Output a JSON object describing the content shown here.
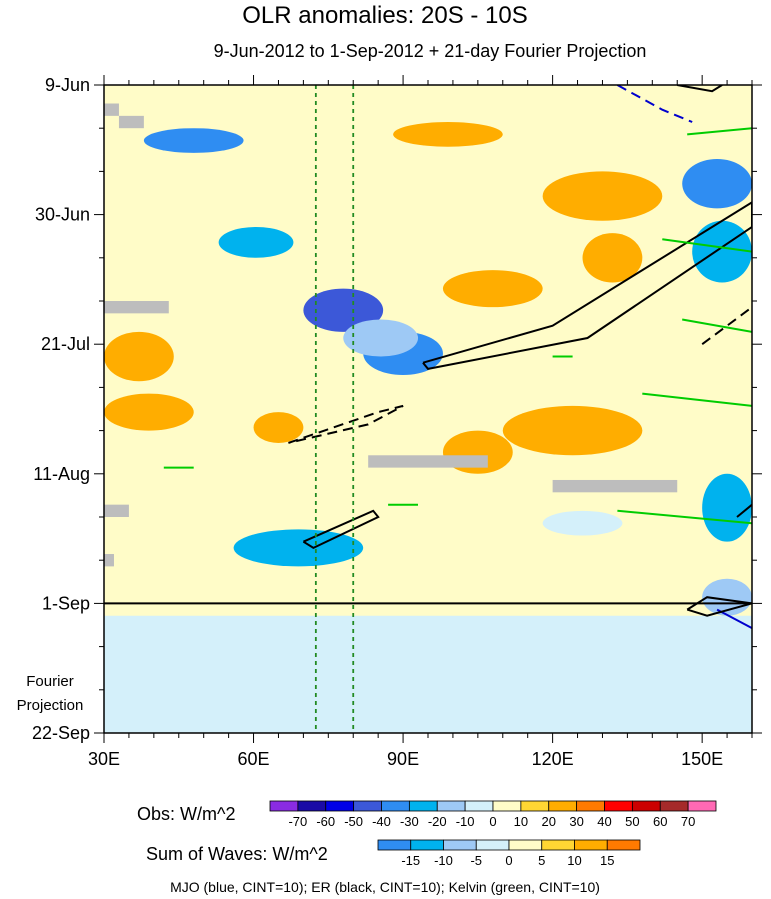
{
  "chart_data": {
    "type": "heatmap",
    "title": "OLR anomalies: 20S - 10S",
    "subtitle": "9-Jun-2012 to 1-Sep-2012 + 21-day Fourier Projection",
    "xlabel": "",
    "ylabel": "",
    "x_range": [
      30,
      160
    ],
    "x_ticks": [
      30,
      60,
      90,
      120,
      150
    ],
    "x_tick_labels": [
      "30E",
      "60E",
      "90E",
      "120E",
      "150E"
    ],
    "y_range_days": [
      0,
      105
    ],
    "y_ticks_days": [
      0,
      21,
      42,
      63,
      84,
      105
    ],
    "y_tick_labels": [
      "9-Jun",
      "30-Jun",
      "21-Jul",
      "11-Aug",
      "1-Sep",
      "22-Sep"
    ],
    "observation_end_day": 84,
    "projection_label_line1": "Fourier",
    "projection_label_line2": "Projection",
    "reference_lines_lon": [
      72.5,
      80
    ],
    "obs_colorbar": {
      "title": "Obs: W/m^2",
      "levels": [
        -70,
        -60,
        -50,
        -40,
        -30,
        -20,
        -10,
        0,
        10,
        20,
        30,
        40,
        50,
        60,
        70
      ],
      "colors": [
        "#8a2be2",
        "#1a0aa6",
        "#0000e6",
        "#3c58d8",
        "#2f8df2",
        "#00b2ee",
        "#9ec9f5",
        "#d4f0fa",
        "#fffcc8",
        "#ffd633",
        "#ffad00",
        "#ff7a00",
        "#ff0000",
        "#cc0000",
        "#a52a2a",
        "#ff69b4"
      ]
    },
    "waves_colorbar": {
      "title": "Sum of Waves: W/m^2",
      "levels": [
        -15,
        -10,
        -5,
        0,
        5,
        10,
        15
      ],
      "colors": [
        "#2f8df2",
        "#00b2ee",
        "#9ec9f5",
        "#d4f0fa",
        "#fffcc8",
        "#ffd633",
        "#ffad00",
        "#ff7a00"
      ]
    },
    "anomaly_regions": [
      {
        "lon": [
          38,
          58
        ],
        "day": [
          7,
          11
        ],
        "value": -40
      },
      {
        "lon": [
          53,
          68
        ],
        "day": [
          23,
          28
        ],
        "value": -30
      },
      {
        "lon": [
          70,
          86
        ],
        "day": [
          33,
          40
        ],
        "value": -50
      },
      {
        "lon": [
          82,
          98
        ],
        "day": [
          40,
          47
        ],
        "value": -40
      },
      {
        "lon": [
          78,
          93
        ],
        "day": [
          38,
          44
        ],
        "value": -20
      },
      {
        "lon": [
          56,
          82
        ],
        "day": [
          72,
          78
        ],
        "value": -30
      },
      {
        "lon": [
          118,
          134
        ],
        "day": [
          69,
          73
        ],
        "value": -10
      },
      {
        "lon": [
          146,
          160
        ],
        "day": [
          12,
          20
        ],
        "value": -40
      },
      {
        "lon": [
          148,
          160
        ],
        "day": [
          22,
          32
        ],
        "value": -30
      },
      {
        "lon": [
          150,
          160
        ],
        "day": [
          63,
          74
        ],
        "value": -30
      },
      {
        "lon": [
          150,
          160
        ],
        "day": [
          80,
          86
        ],
        "value": -20
      },
      {
        "lon": [
          30,
          160
        ],
        "day": [
          86,
          105
        ],
        "value": -5
      },
      {
        "lon": [
          118,
          142
        ],
        "day": [
          14,
          22
        ],
        "value": 20
      },
      {
        "lon": [
          88,
          110
        ],
        "day": [
          6,
          10
        ],
        "value": 20
      },
      {
        "lon": [
          30,
          44
        ],
        "day": [
          40,
          48
        ],
        "value": 20
      },
      {
        "lon": [
          30,
          48
        ],
        "day": [
          50,
          56
        ],
        "value": 20
      },
      {
        "lon": [
          110,
          138
        ],
        "day": [
          52,
          60
        ],
        "value": 20
      },
      {
        "lon": [
          98,
          112
        ],
        "day": [
          56,
          63
        ],
        "value": 20
      },
      {
        "lon": [
          126,
          138
        ],
        "day": [
          24,
          32
        ],
        "value": 20
      },
      {
        "lon": [
          98,
          118
        ],
        "day": [
          30,
          36
        ],
        "value": 20
      },
      {
        "lon": [
          60,
          70
        ],
        "day": [
          53,
          58
        ],
        "value": 20
      }
    ],
    "missing_data_regions": [
      {
        "lon": [
          30,
          33
        ],
        "day": [
          3,
          5
        ]
      },
      {
        "lon": [
          33,
          38
        ],
        "day": [
          5,
          7
        ]
      },
      {
        "lon": [
          30,
          43
        ],
        "day": [
          35,
          37
        ]
      },
      {
        "lon": [
          83,
          107
        ],
        "day": [
          60,
          62
        ]
      },
      {
        "lon": [
          120,
          145
        ],
        "day": [
          64,
          66
        ]
      },
      {
        "lon": [
          30,
          35
        ],
        "day": [
          68,
          70
        ]
      },
      {
        "lon": [
          30,
          32
        ],
        "day": [
          76,
          78
        ]
      }
    ],
    "wave_contours": [
      {
        "wave": "MJO",
        "color": "#0000cd",
        "dash": true,
        "points": [
          [
            133,
            0
          ],
          [
            142,
            4
          ],
          [
            148,
            6
          ]
        ]
      },
      {
        "wave": "MJO",
        "color": "#0000cd",
        "dash": false,
        "points": [
          [
            153,
            85
          ],
          [
            160,
            88
          ]
        ]
      },
      {
        "wave": "ER",
        "color": "#000000",
        "dash": false,
        "points": [
          [
            94,
            45
          ],
          [
            120,
            39
          ],
          [
            160,
            19
          ],
          [
            160,
            23
          ],
          [
            127,
            41
          ],
          [
            95,
            46
          ],
          [
            94,
            45
          ]
        ]
      },
      {
        "wave": "ER",
        "color": "#000000",
        "dash": true,
        "points": [
          [
            67,
            58
          ],
          [
            85,
            53
          ],
          [
            90,
            52
          ],
          [
            83,
            55
          ],
          [
            67,
            58
          ]
        ]
      },
      {
        "wave": "ER",
        "color": "#000000",
        "dash": true,
        "points": [
          [
            150,
            42
          ],
          [
            160,
            36
          ]
        ]
      },
      {
        "wave": "ER",
        "color": "#000000",
        "dash": false,
        "points": [
          [
            70,
            74
          ],
          [
            84,
            69
          ],
          [
            85,
            70
          ],
          [
            72,
            75
          ],
          [
            70,
            74
          ]
        ]
      },
      {
        "wave": "ER",
        "color": "#000000",
        "dash": false,
        "points": [
          [
            157,
            70
          ],
          [
            160,
            68
          ]
        ]
      },
      {
        "wave": "ER",
        "color": "#000000",
        "dash": false,
        "points": [
          [
            147,
            85
          ],
          [
            151,
            83
          ],
          [
            160,
            84
          ],
          [
            151,
            86
          ],
          [
            147,
            85
          ]
        ]
      },
      {
        "wave": "ER",
        "color": "#000000",
        "dash": false,
        "points": [
          [
            145,
            0
          ],
          [
            152,
            1
          ],
          [
            154,
            0
          ]
        ]
      },
      {
        "wave": "Kelvin",
        "color": "#00cc00",
        "dash": false,
        "points": [
          [
            147,
            8
          ],
          [
            160,
            7
          ]
        ]
      },
      {
        "wave": "Kelvin",
        "color": "#00cc00",
        "dash": false,
        "points": [
          [
            142,
            25
          ],
          [
            160,
            27
          ]
        ]
      },
      {
        "wave": "Kelvin",
        "color": "#00cc00",
        "dash": false,
        "points": [
          [
            146,
            38
          ],
          [
            160,
            40
          ]
        ]
      },
      {
        "wave": "Kelvin",
        "color": "#00cc00",
        "dash": false,
        "points": [
          [
            138,
            50
          ],
          [
            160,
            52
          ]
        ]
      },
      {
        "wave": "Kelvin",
        "color": "#00cc00",
        "dash": false,
        "points": [
          [
            133,
            69
          ],
          [
            160,
            71
          ]
        ]
      },
      {
        "wave": "Kelvin",
        "color": "#00cc00",
        "dash": false,
        "points": [
          [
            42,
            62
          ],
          [
            48,
            62
          ]
        ]
      },
      {
        "wave": "Kelvin",
        "color": "#00cc00",
        "dash": false,
        "points": [
          [
            87,
            68
          ],
          [
            93,
            68
          ]
        ]
      },
      {
        "wave": "Kelvin",
        "color": "#00cc00",
        "dash": false,
        "points": [
          [
            120,
            44
          ],
          [
            124,
            44
          ]
        ]
      }
    ],
    "legend_text": "MJO (blue, CINT=10); ER (black, CINT=10); Kelvin (green, CINT=10)"
  }
}
